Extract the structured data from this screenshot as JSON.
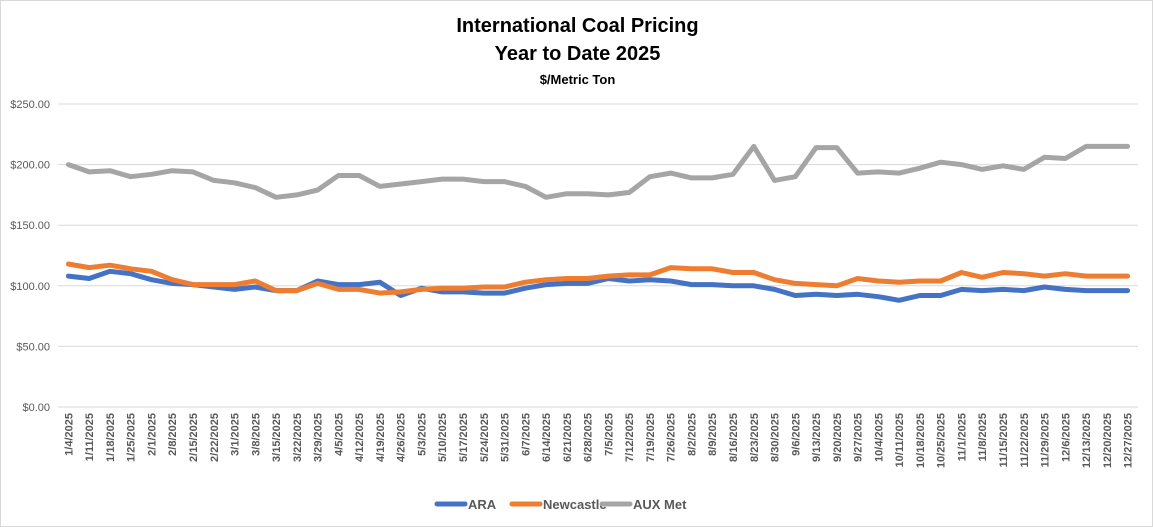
{
  "chart_data": {
    "type": "line",
    "title": "International Coal Pricing",
    "subtitle": "Year to Date 2025",
    "ylabel": "$/Metric Ton",
    "ylim": [
      0,
      250
    ],
    "yticks": [
      "$0.00",
      "$50.00",
      "$100.00",
      "$150.00",
      "$200.00",
      "$250.00"
    ],
    "grid": true,
    "legend": "bottom",
    "x": [
      "1/4/2025",
      "1/11/2025",
      "1/18/2025",
      "1/25/2025",
      "2/1/2025",
      "2/8/2025",
      "2/15/2025",
      "2/22/2025",
      "3/1/2025",
      "3/8/2025",
      "3/15/2025",
      "3/22/2025",
      "3/29/2025",
      "4/5/2025",
      "4/12/2025",
      "4/19/2025",
      "4/26/2025",
      "5/3/2025",
      "5/10/2025",
      "5/17/2025",
      "5/24/2025",
      "5/31/2025",
      "6/7/2025",
      "6/14/2025",
      "6/21/2025",
      "6/28/2025",
      "7/5/2025",
      "7/12/2025",
      "7/19/2025",
      "7/26/2025",
      "8/2/2025",
      "8/9/2025",
      "8/16/2025",
      "8/23/2025",
      "8/30/2025",
      "9/6/2025",
      "9/13/2025",
      "9/20/2025",
      "9/27/2025",
      "10/4/2025",
      "10/11/2025",
      "10/18/2025",
      "10/25/2025",
      "11/1/2025",
      "11/8/2025",
      "11/15/2025",
      "11/22/2025",
      "11/29/2025",
      "12/6/2025",
      "12/13/2025",
      "12/20/2025",
      "12/27/2025"
    ],
    "series": [
      {
        "name": "ARA",
        "color": "#4472c4",
        "values": [
          108,
          106,
          112,
          110,
          105,
          102,
          101,
          99,
          97,
          99,
          96,
          96,
          104,
          101,
          101,
          103,
          92,
          98,
          95,
          95,
          94,
          94,
          98,
          101,
          102,
          102,
          106,
          104,
          105,
          104,
          101,
          101,
          100,
          100,
          97,
          92,
          93,
          92,
          93,
          91,
          88,
          92,
          92,
          97,
          96,
          97,
          96,
          99,
          97,
          96,
          96,
          96
        ]
      },
      {
        "name": "Newcastle",
        "color": "#ed7d31",
        "values": [
          118,
          115,
          117,
          114,
          112,
          105,
          101,
          101,
          101,
          104,
          96,
          96,
          102,
          97,
          97,
          94,
          95,
          97,
          98,
          98,
          99,
          99,
          103,
          105,
          106,
          106,
          108,
          109,
          109,
          115,
          114,
          114,
          111,
          111,
          105,
          102,
          101,
          100,
          106,
          104,
          103,
          104,
          104,
          111,
          107,
          111,
          110,
          108,
          110,
          108,
          108,
          108
        ]
      },
      {
        "name": "AUX Met",
        "color": "#a5a5a5",
        "values": [
          200,
          194,
          195,
          190,
          192,
          195,
          194,
          187,
          185,
          181,
          173,
          175,
          179,
          191,
          191,
          182,
          184,
          186,
          188,
          188,
          186,
          186,
          182,
          173,
          176,
          176,
          175,
          177,
          190,
          193,
          189,
          189,
          192,
          215,
          187,
          190,
          214,
          214,
          193,
          194,
          193,
          197,
          202,
          200,
          196,
          199,
          196,
          206,
          205,
          215,
          215,
          215
        ]
      }
    ]
  }
}
